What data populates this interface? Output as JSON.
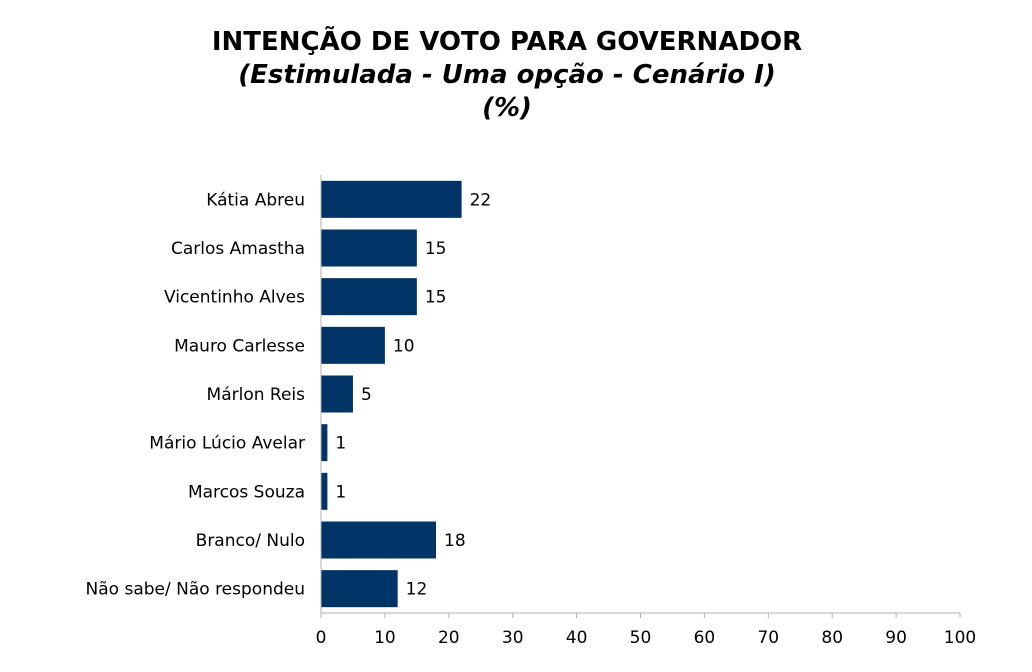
{
  "chart_data": {
    "type": "bar",
    "orientation": "horizontal",
    "title": "INTENÇÃO DE VOTO PARA GOVERNADOR",
    "subtitle": "(Estimulada - Uma opção - Cenário I)",
    "unit_label": "(%)",
    "categories": [
      "Kátia Abreu",
      "Carlos Amastha",
      "Vicentinho Alves",
      "Mauro Carlesse",
      "Márlon Reis",
      "Mário Lúcio Avelar",
      "Marcos Souza",
      "Branco/ Nulo",
      "Não sabe/ Não respondeu"
    ],
    "values": [
      22,
      15,
      15,
      10,
      5,
      1,
      1,
      18,
      12
    ],
    "value_labels": [
      "22",
      "15",
      "15",
      "10",
      "5",
      "1",
      "1",
      "18",
      "12"
    ],
    "xlim": [
      0,
      100
    ],
    "xticks": [
      0,
      10,
      20,
      30,
      40,
      50,
      60,
      70,
      80,
      90,
      100
    ],
    "xtick_labels": [
      "0",
      "10",
      "20",
      "30",
      "40",
      "50",
      "60",
      "70",
      "80",
      "90",
      "100"
    ],
    "bar_color": "#003366",
    "axis_color": "#b0b0b0",
    "grid": false,
    "legend": "none"
  }
}
